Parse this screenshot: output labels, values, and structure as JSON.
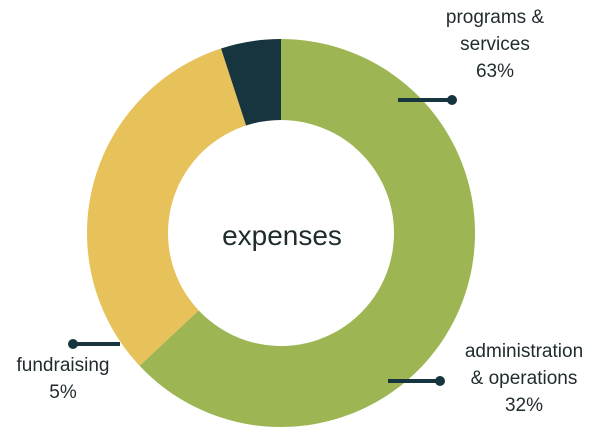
{
  "chart_data": {
    "type": "pie",
    "donut": true,
    "center_label": "expenses",
    "start_angle_deg": 0,
    "slices": [
      {
        "label_lines": [
          "programs &",
          "services"
        ],
        "value_label": "63%",
        "value": 63,
        "color": "#9db552"
      },
      {
        "label_lines": [
          "administration",
          "& operations"
        ],
        "value_label": "32%",
        "value": 32,
        "color": "#e7c25a"
      },
      {
        "label_lines": [
          "fundraising"
        ],
        "value_label": "5%",
        "value": 5,
        "color": "#17353f"
      }
    ],
    "leader_line_color": "#17353f"
  }
}
